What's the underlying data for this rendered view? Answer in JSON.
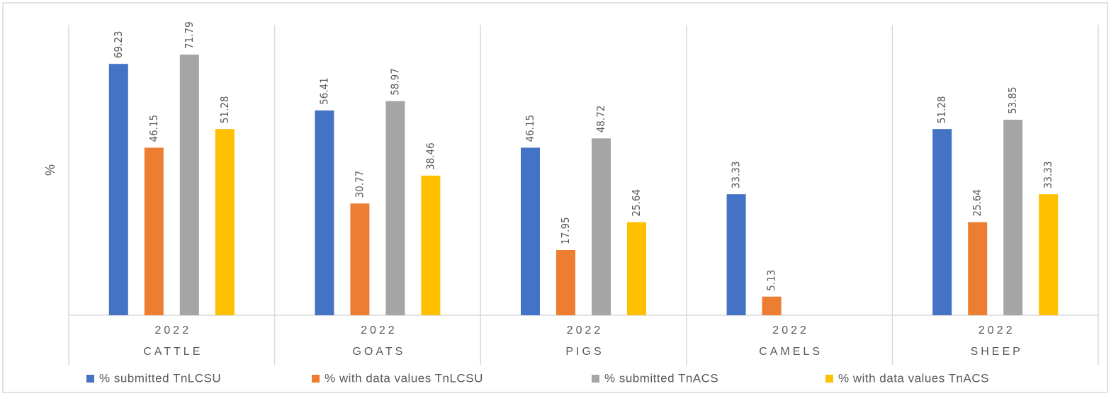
{
  "chart_data": {
    "type": "bar",
    "y_label": "%",
    "years": [
      "2022",
      "2022",
      "2022",
      "2022",
      "2022"
    ],
    "categories": [
      "CATTLE",
      "GOATS",
      "PIGS",
      "CAMELS",
      "SHEEP"
    ],
    "series": [
      {
        "name": "% submitted TnLCSU",
        "color": "#4472c4",
        "values": [
          69.23,
          56.41,
          46.15,
          33.33,
          51.28
        ]
      },
      {
        "name": "% with data values TnLCSU",
        "color": "#ed7d31",
        "values": [
          46.15,
          30.77,
          17.95,
          5.13,
          25.64
        ]
      },
      {
        "name": "% submitted TnACS",
        "color": "#a5a5a5",
        "values": [
          71.79,
          58.97,
          48.72,
          null,
          53.85
        ]
      },
      {
        "name": "% with data values TnACS",
        "color": "#ffc000",
        "values": [
          51.28,
          38.46,
          25.64,
          null,
          33.33
        ]
      }
    ],
    "ylim": [
      0,
      80
    ],
    "legend": "bottom"
  }
}
